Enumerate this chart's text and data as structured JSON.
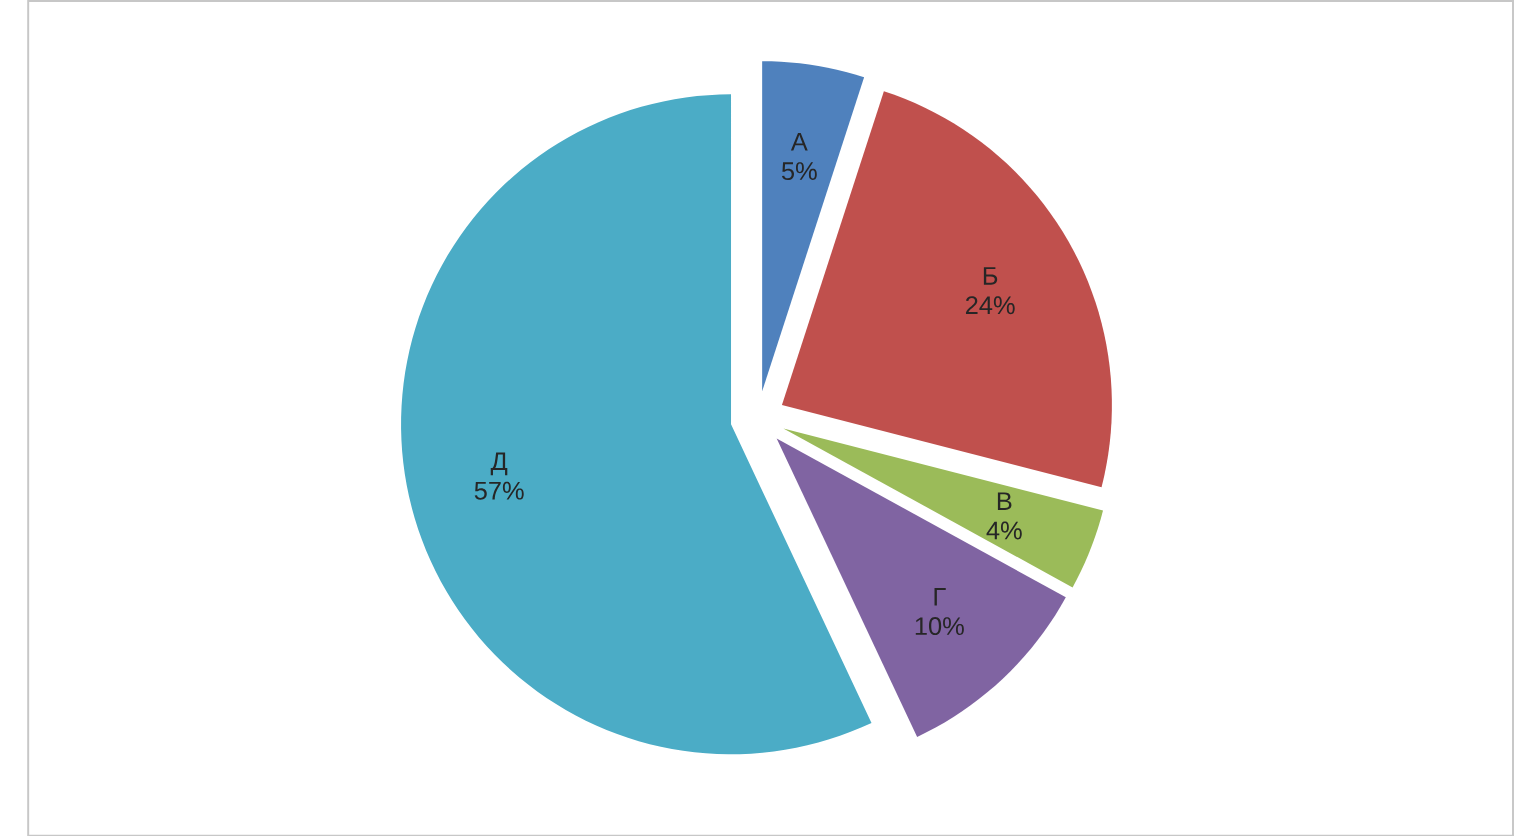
{
  "chart_data": {
    "type": "pie",
    "categories": [
      "А",
      "Б",
      "В",
      "Г",
      "Д"
    ],
    "values": [
      5,
      24,
      4,
      10,
      57
    ],
    "value_labels": [
      "5%",
      "24%",
      "4%",
      "10%",
      "57%"
    ],
    "colors": [
      "#4f81bd",
      "#c0504d",
      "#9bbb59",
      "#8064a2",
      "#4bacc6"
    ]
  }
}
